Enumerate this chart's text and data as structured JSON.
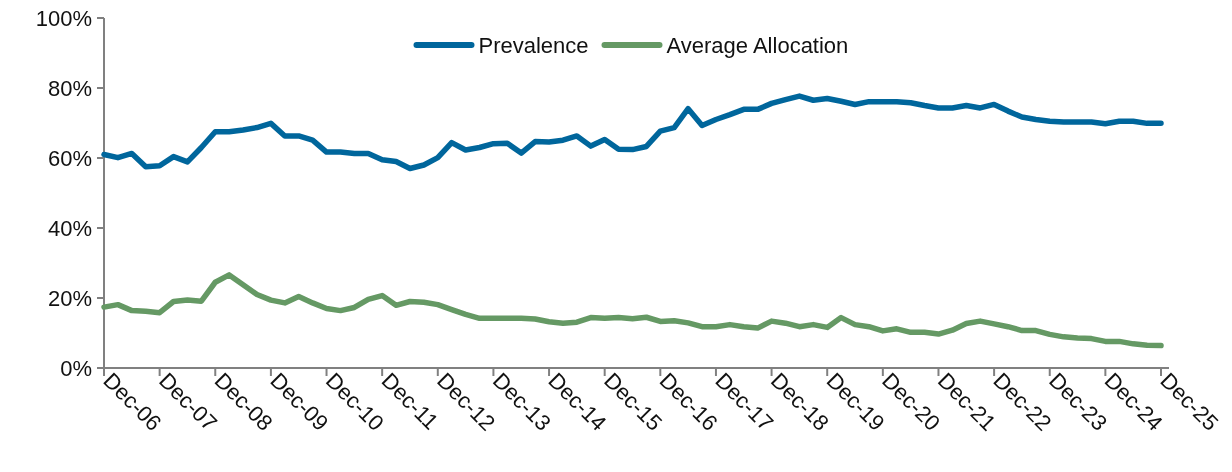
{
  "chart_data": {
    "type": "line",
    "categories": [
      "Dec-06",
      null,
      null,
      null,
      "Dec-07",
      null,
      null,
      null,
      "Dec-08",
      null,
      null,
      null,
      "Dec-09",
      null,
      null,
      null,
      "Dec-10",
      null,
      null,
      null,
      "Dec-11",
      null,
      null,
      null,
      "Dec-12",
      null,
      null,
      null,
      "Dec-13",
      null,
      null,
      null,
      "Dec-14",
      null,
      null,
      null,
      "Dec-15",
      null,
      null,
      null,
      "Dec-16",
      null,
      null,
      null,
      "Dec-17",
      null,
      null,
      null,
      "Dec-18",
      null,
      null,
      null,
      "Dec-19",
      null,
      null,
      null,
      "Dec-20",
      null,
      null,
      null,
      "Dec-21",
      null,
      null,
      null,
      "Dec-22",
      null,
      null,
      null,
      "Dec-23",
      null,
      null,
      null,
      "Dec-24",
      null,
      null,
      null,
      "Dec-25"
    ],
    "series": [
      {
        "name": "Prevalence",
        "color": "#00669c",
        "values": [
          61,
          60.1,
          61.3,
          57.5,
          57.8,
          60.4,
          58.9,
          63,
          67.5,
          67.5,
          68.0,
          68.7,
          69.9,
          66.3,
          66.3,
          65.1,
          61.7,
          61.7,
          61.3,
          61.3,
          59.5,
          59.0,
          57.0,
          58.0,
          60.1,
          64.4,
          62.3,
          63.0,
          64.1,
          64.2,
          61.4,
          64.7,
          64.6,
          65.1,
          66.3,
          63.4,
          65.3,
          62.5,
          62.4,
          63.3,
          67.7,
          68.7,
          74.1,
          69.3,
          71.0,
          72.4,
          73.9,
          73.9,
          75.6,
          76.7,
          77.7,
          76.5,
          77.0,
          76.2,
          75.3,
          76.1,
          76.1,
          76.1,
          75.8,
          75.0,
          74.3,
          74.3,
          75.0,
          74.3,
          75.3,
          73.4,
          71.7,
          71.0,
          70.5,
          70.3,
          70.3,
          70.3,
          69.8,
          70.5,
          70.5,
          69.9,
          69.9
        ]
      },
      {
        "name": "Average Allocation",
        "color": "#659964",
        "values": [
          17.4,
          18.1,
          16.4,
          16.2,
          15.8,
          19.0,
          19.4,
          19.1,
          24.5,
          26.6,
          23.8,
          21.0,
          19.4,
          18.6,
          20.4,
          18.6,
          17.0,
          16.4,
          17.3,
          19.6,
          20.7,
          17.9,
          19.0,
          18.8,
          18.1,
          16.7,
          15.3,
          14.2,
          14.2,
          14.2,
          14.2,
          14.0,
          13.2,
          12.8,
          13.1,
          14.4,
          14.2,
          14.4,
          14.1,
          14.5,
          13.3,
          13.5,
          12.9,
          11.8,
          11.8,
          12.4,
          11.8,
          11.4,
          13.4,
          12.8,
          11.8,
          12.4,
          11.6,
          14.4,
          12.4,
          11.8,
          10.6,
          11.2,
          10.2,
          10.2,
          9.7,
          10.8,
          12.7,
          13.4,
          12.6,
          11.8,
          10.7,
          10.7,
          9.6,
          8.9,
          8.6,
          8.4,
          7.6,
          7.6,
          6.9,
          6.5,
          6.4
        ]
      }
    ],
    "ylim": [
      0,
      100
    ],
    "yticks": [
      {
        "value": 0,
        "label": "0%"
      },
      {
        "value": 20,
        "label": "20%"
      },
      {
        "value": 40,
        "label": "40%"
      },
      {
        "value": 60,
        "label": "60%"
      },
      {
        "value": 80,
        "label": "80%"
      },
      {
        "value": 100,
        "label": "100%"
      }
    ],
    "legend": "top",
    "grid": false,
    "marker": "none",
    "line_style": "solid"
  }
}
